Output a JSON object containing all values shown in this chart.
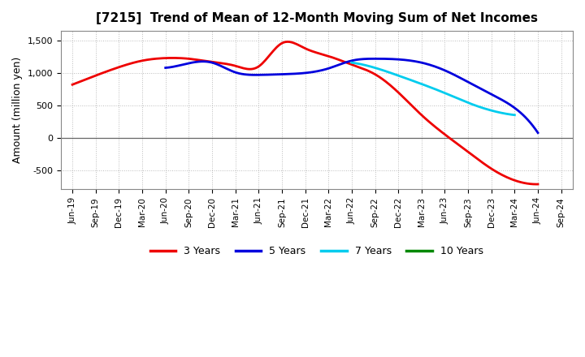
{
  "title": "[7215]  Trend of Mean of 12-Month Moving Sum of Net Incomes",
  "ylabel": "Amount (million yen)",
  "background_color": "#ffffff",
  "plot_bg_color": "#ffffff",
  "grid_color": "#bbbbbb",
  "yticks": [
    -500,
    0,
    500,
    1000,
    1500
  ],
  "ylim": [
    -800,
    1650
  ],
  "x_labels": [
    "Jun-19",
    "Sep-19",
    "Dec-19",
    "Mar-20",
    "Jun-20",
    "Sep-20",
    "Dec-20",
    "Mar-21",
    "Jun-21",
    "Sep-21",
    "Dec-21",
    "Mar-22",
    "Jun-22",
    "Sep-22",
    "Dec-22",
    "Mar-23",
    "Jun-23",
    "Sep-23",
    "Dec-23",
    "Mar-24",
    "Jun-24",
    "Sep-24"
  ],
  "series": {
    "3 Years": {
      "color": "#ee0000",
      "values": [
        820,
        960,
        1090,
        1190,
        1230,
        1220,
        1170,
        1110,
        1100,
        1460,
        1380,
        1260,
        1130,
        980,
        700,
        350,
        50,
        -220,
        -480,
        -660,
        -720,
        null
      ]
    },
    "5 Years": {
      "color": "#0000dd",
      "values": [
        null,
        null,
        null,
        null,
        1080,
        1150,
        1160,
        1010,
        970,
        980,
        1000,
        1070,
        1190,
        1220,
        1210,
        1160,
        1040,
        860,
        670,
        460,
        75,
        null
      ]
    },
    "7 Years": {
      "color": "#00ccee",
      "values": [
        null,
        null,
        null,
        null,
        null,
        null,
        null,
        null,
        null,
        null,
        null,
        null,
        1160,
        1080,
        960,
        830,
        690,
        540,
        420,
        350,
        null,
        null
      ]
    },
    "10 Years": {
      "color": "#008800",
      "values": [
        null,
        null,
        null,
        null,
        null,
        null,
        null,
        null,
        null,
        null,
        null,
        null,
        null,
        null,
        null,
        null,
        null,
        null,
        null,
        null,
        null,
        null
      ]
    }
  },
  "legend_entries": [
    "3 Years",
    "5 Years",
    "7 Years",
    "10 Years"
  ],
  "legend_colors": [
    "#ee0000",
    "#0000dd",
    "#00ccee",
    "#008800"
  ]
}
